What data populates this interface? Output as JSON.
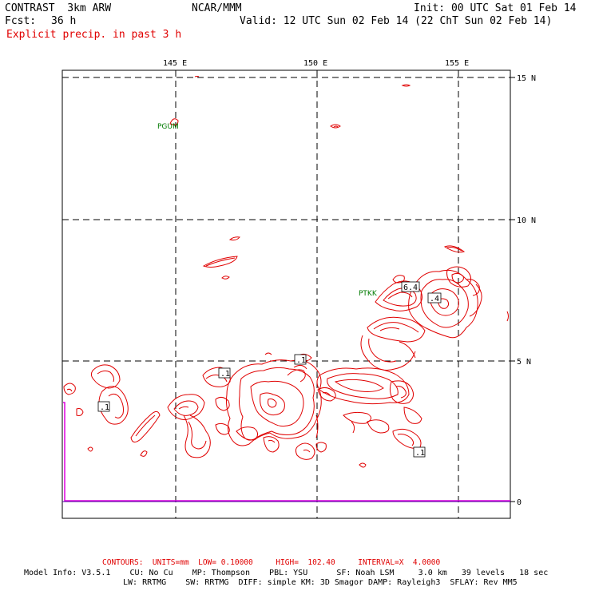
{
  "header": {
    "model_line": "CONTRAST  3km ARW",
    "center": "NCAR/MMM",
    "init": "Init: 00 UTC Sat 01 Feb 14",
    "fcst_label": "Fcst:",
    "fcst_value": "36 h",
    "valid": "Valid: 12 UTC Sun 02 Feb 14 (22 ChT Sun 02 Feb 14)",
    "field": "Explicit precip. in past 3 h"
  },
  "map": {
    "lon_labels": [
      "145 E",
      "150 E",
      "155 E"
    ],
    "lat_labels": [
      "15 N",
      "10 N",
      "5 N"
    ],
    "stations": [
      "PGUM",
      "PTKK"
    ],
    "contour_labels": [
      ".1",
      ".1",
      ".1",
      "6.4",
      ".4",
      ".1"
    ],
    "precip_color": "#e00000",
    "timeseries_color": "#e000e0",
    "timeseries_zero": "0"
  },
  "footer": {
    "contours_line": "CONTOURS:  UNITS=mm  LOW= 0.10000     HIGH=  102.40     INTERVAL=X  4.0000",
    "model_info": "Model Info: V3.5.1    CU: No Cu    MP: Thompson    PBL: YSU      SF: Noah LSM     3.0 km   39 levels   18 sec",
    "physics": "LW: RRTMG    SW: RRTMG  DIFF: simple KM: 3D Smagor DAMP: Rayleigh3  SFLAY: Rev MM5"
  }
}
